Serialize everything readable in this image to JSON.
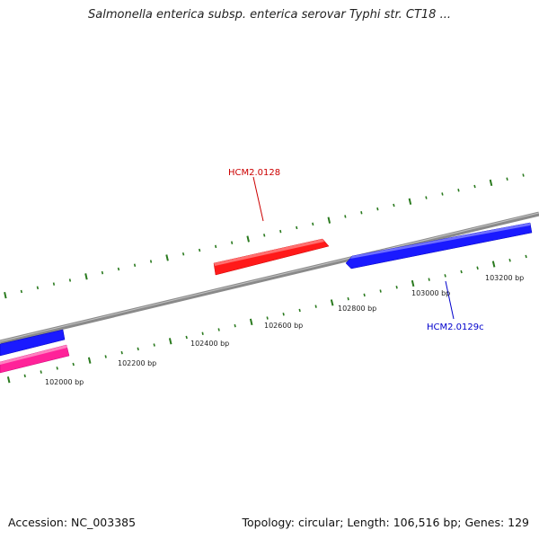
{
  "header": {
    "title": "Salmonella enterica subsp. enterica serovar Typhi str. CT18 ..."
  },
  "footer": {
    "accession": "Accession: NC_003385",
    "summary": "Topology: circular; Length: 106,516 bp; Genes: 129"
  },
  "map": {
    "colors": {
      "backbone": "#808080",
      "tick": "#2a7a1e",
      "forward_gene": "#ff0000",
      "reverse_gene": "#0000ff",
      "other_gene": "#ff1493",
      "label_forward": "#cc0000",
      "label_reverse": "#0000cc"
    },
    "scale_labels": [
      "102000 bp",
      "102200 bp",
      "102400 bp",
      "102600 bp",
      "102800 bp",
      "103000 bp",
      "103200 bp"
    ],
    "gene_labels": {
      "forward": "HCM2.0128",
      "reverse": "HCM2.0129c"
    }
  }
}
